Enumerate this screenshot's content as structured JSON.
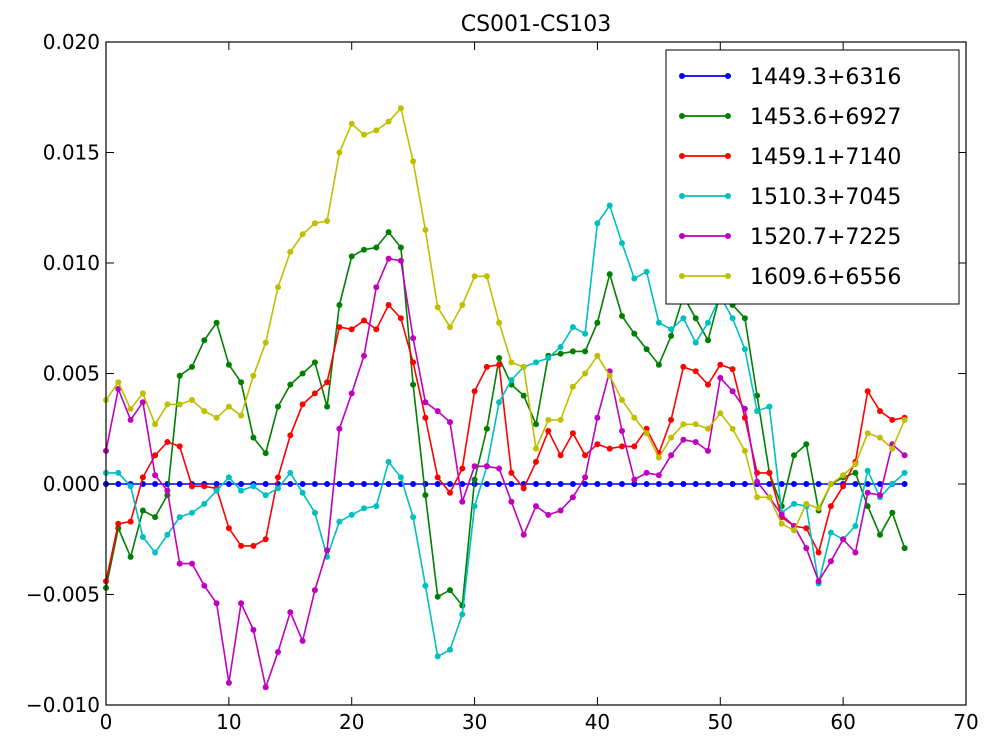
{
  "chart_data": {
    "type": "line",
    "title": "CS001-CS103",
    "xlabel": "",
    "ylabel": "",
    "xlim": [
      0,
      70
    ],
    "ylim": [
      -0.01,
      0.02
    ],
    "xticks": [
      0,
      10,
      20,
      30,
      40,
      50,
      60,
      70
    ],
    "xtick_labels": [
      "0",
      "10",
      "20",
      "30",
      "40",
      "50",
      "60",
      "70"
    ],
    "yticks": [
      -0.01,
      -0.005,
      0.0,
      0.005,
      0.01,
      0.015,
      0.02
    ],
    "ytick_labels": [
      "−0.010",
      "−0.005",
      "0.000",
      "0.005",
      "0.010",
      "0.015",
      "0.020"
    ],
    "grid": false,
    "legend_position": "top-right",
    "x": [
      0,
      1,
      2,
      3,
      4,
      5,
      6,
      7,
      8,
      9,
      10,
      11,
      12,
      13,
      14,
      15,
      16,
      17,
      18,
      19,
      20,
      21,
      22,
      23,
      24,
      25,
      26,
      27,
      28,
      29,
      30,
      31,
      32,
      33,
      34,
      35,
      36,
      37,
      38,
      39,
      40,
      41,
      42,
      43,
      44,
      45,
      46,
      47,
      48,
      49,
      50,
      51,
      52,
      53,
      54,
      55,
      56,
      57,
      58,
      59,
      60,
      61,
      62,
      63,
      64,
      65
    ],
    "series": [
      {
        "name": "1449.3+6316",
        "color": "#0000ff",
        "values": [
          0,
          0,
          0,
          0,
          0,
          0,
          0,
          0,
          0,
          0,
          0,
          0,
          0,
          0,
          0,
          0,
          0,
          0,
          0,
          0,
          0,
          0,
          0,
          0,
          0,
          0,
          0,
          0,
          0,
          0,
          0,
          0,
          0,
          0,
          0,
          0,
          0,
          0,
          0,
          0,
          0,
          0,
          0,
          0,
          0,
          0,
          0,
          0,
          0,
          0,
          0,
          0,
          0,
          0,
          0,
          0,
          0,
          0,
          0,
          0,
          0,
          0,
          0,
          0,
          0,
          0
        ]
      },
      {
        "name": "1453.6+6927",
        "color": "#008000",
        "values": [
          -0.0047,
          -0.002,
          -0.0033,
          -0.0012,
          -0.0015,
          -0.0005,
          0.0049,
          0.0053,
          0.0065,
          0.0073,
          0.0054,
          0.0046,
          0.0021,
          0.0014,
          0.0035,
          0.0045,
          0.005,
          0.0055,
          0.0035,
          0.0081,
          0.0103,
          0.0106,
          0.0107,
          0.0114,
          0.0107,
          0.0045,
          -0.0005,
          -0.0051,
          -0.0048,
          -0.0055,
          0.0002,
          0.0025,
          0.0057,
          0.0045,
          0.004,
          0.0027,
          0.0058,
          0.0059,
          0.006,
          0.006,
          0.0073,
          0.0095,
          0.0076,
          0.0068,
          0.0061,
          0.0054,
          0.0067,
          0.0085,
          0.0075,
          0.0065,
          0.0086,
          0.0081,
          0.0075,
          0.004,
          0.0005,
          -0.001,
          0.0013,
          0.0018,
          -0.0012,
          0.0,
          0.0003,
          0.0005,
          -0.001,
          -0.0023,
          -0.0013,
          -0.0029
        ]
      },
      {
        "name": "1459.1+7140",
        "color": "#ff0000",
        "values": [
          -0.0044,
          -0.0018,
          -0.0017,
          0.0003,
          0.0013,
          0.0019,
          0.0017,
          -0.0001,
          -0.0001,
          -0.0002,
          -0.002,
          -0.0028,
          -0.0028,
          -0.0025,
          0.0003,
          0.0022,
          0.0036,
          0.0041,
          0.0046,
          0.0071,
          0.007,
          0.0074,
          0.007,
          0.0081,
          0.0075,
          0.0055,
          0.003,
          0.0003,
          -0.0004,
          0.0007,
          0.0042,
          0.0053,
          0.0054,
          0.0005,
          -0.0002,
          0.001,
          0.0024,
          0.0013,
          0.0023,
          0.0013,
          0.0018,
          0.0016,
          0.0017,
          0.0017,
          0.0025,
          0.0014,
          0.0029,
          0.0053,
          0.0051,
          0.0045,
          0.0054,
          0.0052,
          0.003,
          0.0005,
          0.0005,
          -0.0015,
          -0.0019,
          -0.002,
          -0.0031,
          -0.001,
          -0.0001,
          0.001,
          0.0042,
          0.0033,
          0.0029,
          0.003
        ]
      },
      {
        "name": "1510.3+7045",
        "color": "#00bfbf",
        "values": [
          0.0005,
          0.0005,
          -0.0001,
          -0.0024,
          -0.0031,
          -0.0023,
          -0.0015,
          -0.0013,
          -0.0009,
          -0.0003,
          0.0003,
          -0.0003,
          -0.0001,
          -0.0005,
          -0.0002,
          0.0005,
          -0.0004,
          -0.0013,
          -0.0033,
          -0.0017,
          -0.0014,
          -0.0011,
          -0.001,
          0.001,
          0.0003,
          -0.0015,
          -0.0046,
          -0.0078,
          -0.0075,
          -0.0059,
          -0.001,
          0.0008,
          0.0037,
          0.0047,
          0.0053,
          0.0055,
          0.0057,
          0.0062,
          0.0071,
          0.0068,
          0.0118,
          0.0126,
          0.0109,
          0.0093,
          0.0096,
          0.0073,
          0.007,
          0.0075,
          0.0064,
          0.0073,
          0.0085,
          0.0075,
          0.0061,
          0.0033,
          0.0035,
          -0.0013,
          -0.0009,
          -0.001,
          -0.0045,
          -0.0022,
          -0.0025,
          -0.0019,
          0.0006,
          -0.0006,
          0.0,
          0.0005
        ]
      },
      {
        "name": "1520.7+7225",
        "color": "#bf00bf",
        "values": [
          0.0015,
          0.0043,
          0.0029,
          0.0037,
          0.0004,
          -0.0003,
          -0.0036,
          -0.0036,
          -0.0046,
          -0.0054,
          -0.009,
          -0.0054,
          -0.0066,
          -0.0092,
          -0.0076,
          -0.0058,
          -0.0071,
          -0.0048,
          -0.003,
          0.0025,
          0.0041,
          0.0058,
          0.0089,
          0.0102,
          0.0101,
          0.0066,
          0.0037,
          0.0033,
          0.0028,
          -0.0008,
          0.0008,
          0.0008,
          0.0007,
          -0.0008,
          -0.0023,
          -0.001,
          -0.0014,
          -0.0012,
          -0.0006,
          0.0003,
          0.003,
          0.0051,
          0.0024,
          0.0002,
          0.0005,
          0.0004,
          0.0013,
          0.002,
          0.0019,
          0.0015,
          0.0048,
          0.0042,
          0.0034,
          0.0001,
          -0.0006,
          -0.0014,
          -0.0019,
          -0.0029,
          -0.0044,
          -0.0035,
          -0.0025,
          -0.0031,
          -0.0004,
          -0.0005,
          0.0018,
          0.0013
        ]
      },
      {
        "name": "1609.6+6556",
        "color": "#bfbf00",
        "values": [
          0.0038,
          0.0046,
          0.0034,
          0.0041,
          0.0027,
          0.0036,
          0.0036,
          0.0038,
          0.0033,
          0.003,
          0.0035,
          0.0031,
          0.0049,
          0.0064,
          0.0089,
          0.0105,
          0.0113,
          0.0118,
          0.0119,
          0.015,
          0.0163,
          0.0158,
          0.016,
          0.0164,
          0.017,
          0.0146,
          0.0115,
          0.008,
          0.0071,
          0.0081,
          0.0094,
          0.0094,
          0.0073,
          0.0055,
          0.0053,
          0.0016,
          0.0029,
          0.0029,
          0.0044,
          0.005,
          0.0058,
          0.0049,
          0.0038,
          0.003,
          0.0023,
          0.0012,
          0.0021,
          0.0027,
          0.0027,
          0.0025,
          0.0032,
          0.0025,
          0.0015,
          -0.0006,
          -0.0006,
          -0.0018,
          -0.0021,
          -0.0009,
          -0.0011,
          0.0,
          0.0004,
          0.0009,
          0.0023,
          0.0021,
          0.0016,
          0.0029
        ]
      }
    ]
  }
}
